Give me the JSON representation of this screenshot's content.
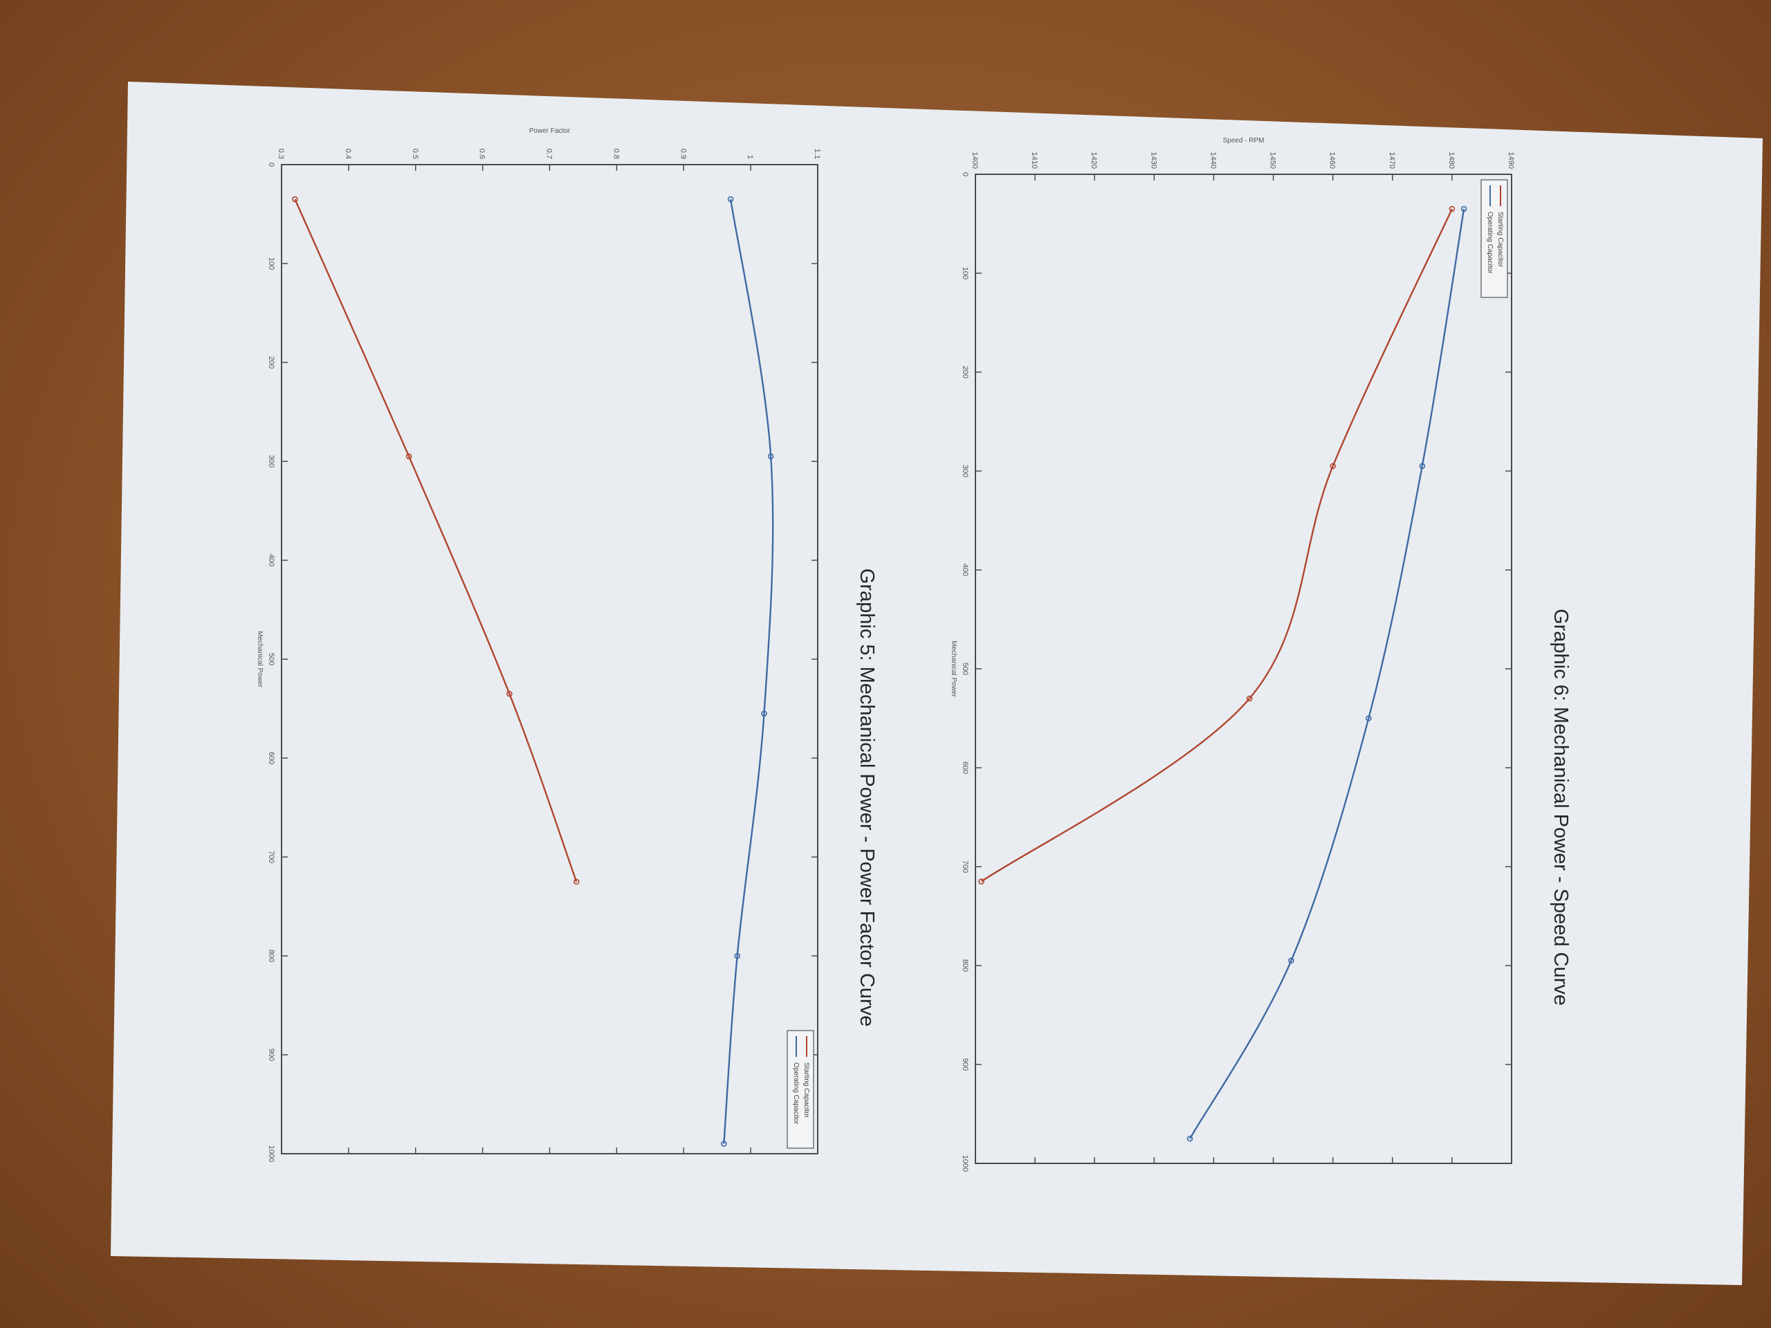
{
  "colors": {
    "starting": "#b0452e",
    "operating": "#3f6aa4",
    "paper": "#e9edf1",
    "background": "#8a5228"
  },
  "chart_data": [
    {
      "type": "line",
      "caption": "Graphic 5: Mechanical Power - Power Factor Curve",
      "xlabel": "Mechanical Power",
      "ylabel": "Power Factor",
      "xlim": [
        0,
        1000
      ],
      "ylim": [
        0.3,
        1.1
      ],
      "xticks": [
        "0",
        "100",
        "200",
        "300",
        "400",
        "500",
        "600",
        "700",
        "800",
        "900",
        "1000"
      ],
      "yticks": [
        "0.3",
        "0.4",
        "0.5",
        "0.6",
        "0.7",
        "0.8",
        "0.9",
        "1",
        "1.1"
      ],
      "legend": {
        "position": "top-right",
        "entries": [
          "Starting Capacitor",
          "Operating Capacitor"
        ]
      },
      "series": [
        {
          "name": "Starting Capacitor",
          "color_key": "starting",
          "x": [
            35,
            295,
            535,
            725
          ],
          "y": [
            0.32,
            0.49,
            0.64,
            0.74
          ]
        },
        {
          "name": "Operating Capacitor",
          "color_key": "operating",
          "x": [
            35,
            295,
            555,
            800,
            990
          ],
          "y": [
            0.97,
            1.03,
            1.02,
            0.98,
            0.96
          ]
        }
      ]
    },
    {
      "type": "line",
      "caption": "Graphic 6: Mechanical Power - Speed Curve",
      "xlabel": "Mechanical Power",
      "ylabel": "Speed - RPM",
      "xlim": [
        0,
        1000
      ],
      "ylim": [
        1400,
        1490
      ],
      "xticks": [
        "0",
        "100",
        "200",
        "300",
        "400",
        "500",
        "600",
        "700",
        "800",
        "900",
        "1000"
      ],
      "yticks": [
        "1400",
        "1410",
        "1420",
        "1430",
        "1440",
        "1450",
        "1460",
        "1470",
        "1480",
        "1490"
      ],
      "legend": {
        "position": "top-left",
        "entries": [
          "Starting Capacitor",
          "Operating Capacitor"
        ]
      },
      "series": [
        {
          "name": "Starting Capacitor",
          "color_key": "starting",
          "x": [
            35,
            295,
            530,
            715
          ],
          "y": [
            1480,
            1460,
            1446,
            1401
          ]
        },
        {
          "name": "Operating Capacitor",
          "color_key": "operating",
          "x": [
            35,
            295,
            550,
            795,
            975
          ],
          "y": [
            1482,
            1475,
            1466,
            1453,
            1436
          ]
        }
      ]
    }
  ]
}
